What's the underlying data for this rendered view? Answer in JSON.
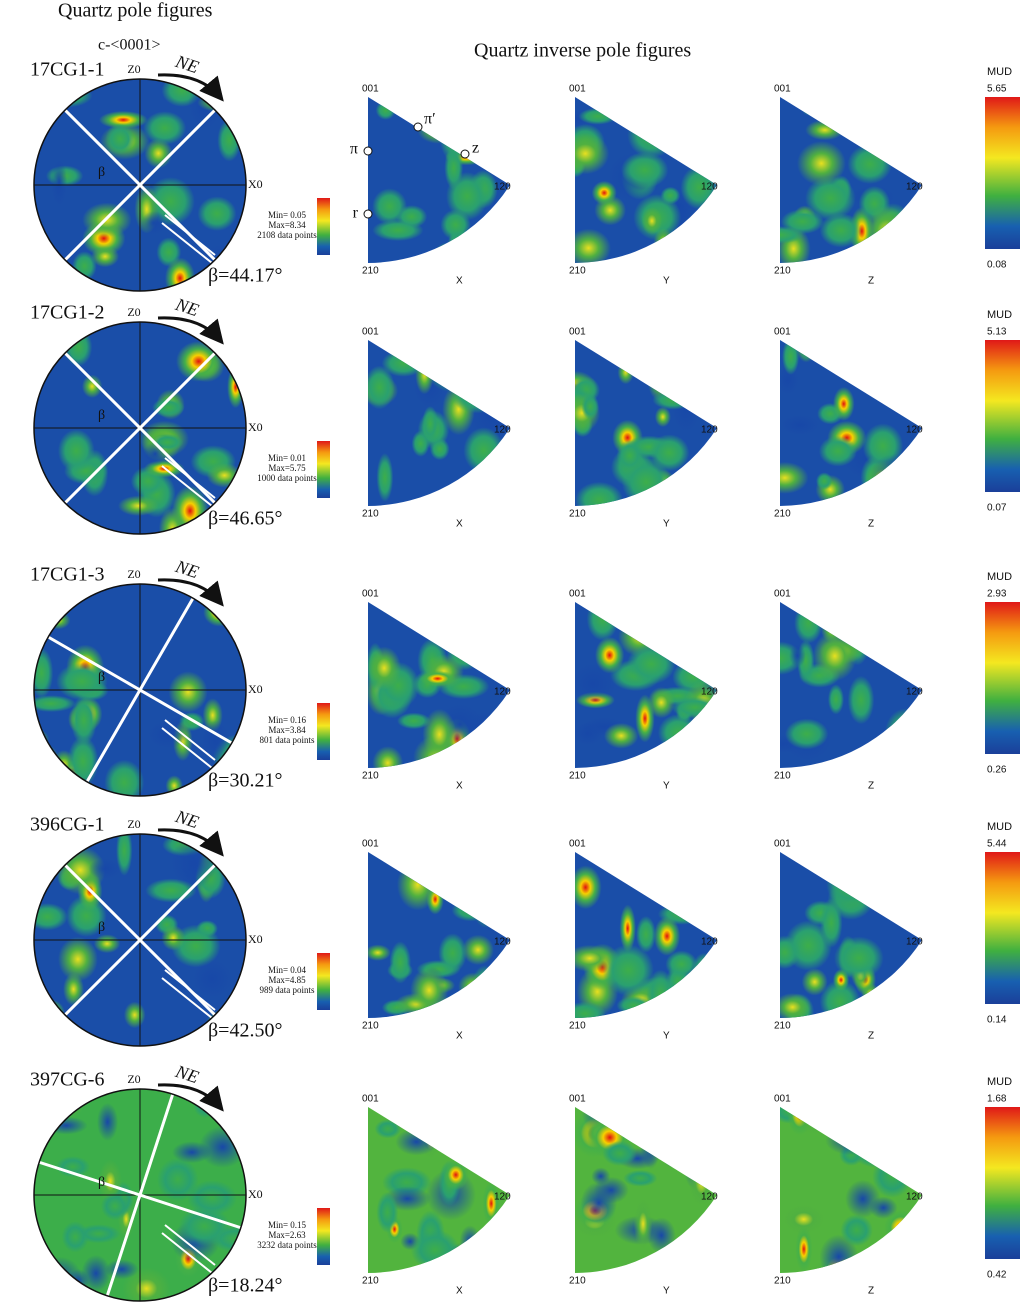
{
  "header": {
    "pole_title": "Quartz pole figures",
    "c_axis": "c-<0001>",
    "ipf_title": "Quartz inverse pole figures"
  },
  "labels": {
    "z0": "Z0",
    "x0": "X0",
    "ne": "NE",
    "beta": "β",
    "v001": "001",
    "v120": "120",
    "v210": "210",
    "axes": [
      "X",
      "Y",
      "Z"
    ],
    "mud": "MUD"
  },
  "first_row_markers": [
    "π′",
    "π",
    "z",
    "r"
  ],
  "rows": [
    {
      "sample": "17CG1-1",
      "min": "Min= 0.05",
      "max": "Max=8.34",
      "points": "2108 data points",
      "angle": "β=44.17°",
      "mud_max": "5.65",
      "mud_min": "0.08"
    },
    {
      "sample": "17CG1-2",
      "min": "Min= 0.01",
      "max": "Max=5.75",
      "points": "1000 data points",
      "angle": "β=46.65°",
      "mud_max": "5.13",
      "mud_min": "0.07"
    },
    {
      "sample": "17CG1-3",
      "min": "Min= 0.16",
      "max": "Max=3.84",
      "points": "801 data points",
      "angle": "β=30.21°",
      "mud_max": "2.93",
      "mud_min": "0.26"
    },
    {
      "sample": "396CG-1",
      "min": "Min= 0.04",
      "max": "Max=4.85",
      "points": "989 data points",
      "angle": "β=42.50°",
      "mud_max": "5.44",
      "mud_min": "0.14"
    },
    {
      "sample": "397CG-6",
      "min": "Min= 0.15",
      "max": "Max=2.63",
      "points": "3232 data points",
      "angle": "β=18.24°",
      "mud_max": "1.68",
      "mud_min": "0.42"
    }
  ]
}
